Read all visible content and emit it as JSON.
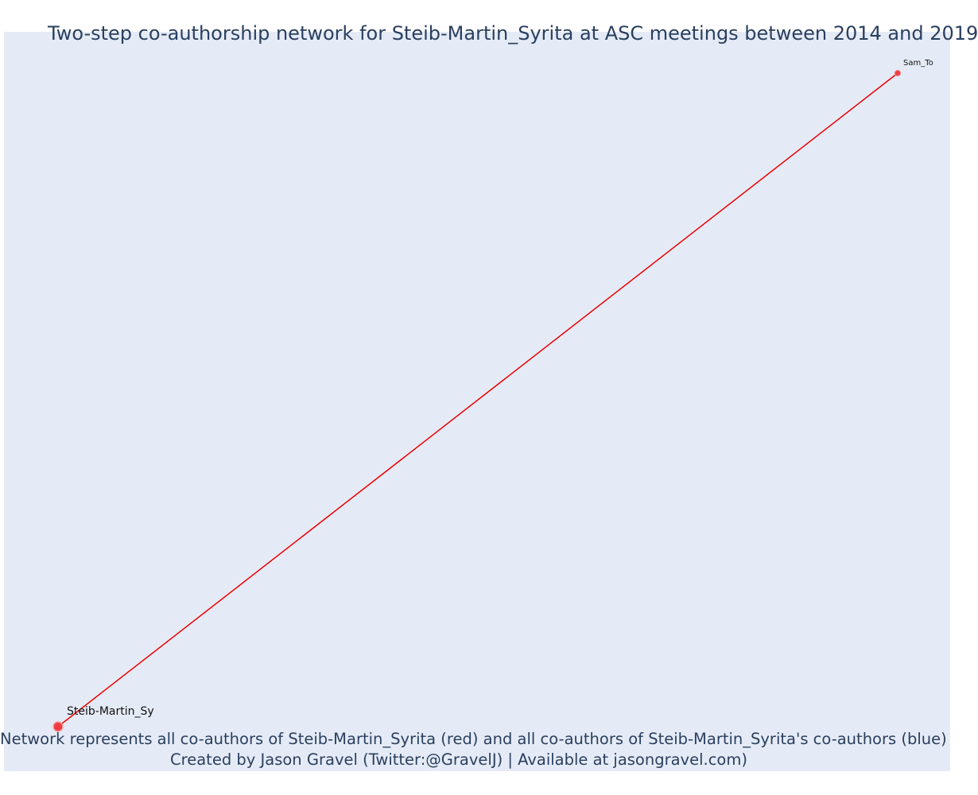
{
  "title": "Two-step co-authorship network for Steib-Martin_Syrita at ASC meetings between 2014 and 2019",
  "caption": {
    "line1": "Network represents all co-authors of Steib-Martin_Syrita (red) and all co-authors of Steib-Martin_Syrita's co-authors (blue)",
    "line2": "Created by Jason Gravel (Twitter:@GravelJ) | Available at jasongravel.com)"
  },
  "colors": {
    "background": "#e5ebf6",
    "edge": "#ee0000",
    "node_primary": "#ef3e42",
    "text": "#2a3f5f"
  },
  "network": {
    "nodes": [
      {
        "id": "Steib-Martin_Sy",
        "label": "Steib-Martin_Sy",
        "group": "focal",
        "x": 0,
        "y": 0,
        "size": "large"
      },
      {
        "id": "Sam_To",
        "label": "Sam_To",
        "group": "co-author",
        "x": 1,
        "y": 1,
        "size": "small"
      }
    ],
    "edges": [
      {
        "source": "Steib-Martin_Sy",
        "target": "Sam_To"
      }
    ]
  }
}
